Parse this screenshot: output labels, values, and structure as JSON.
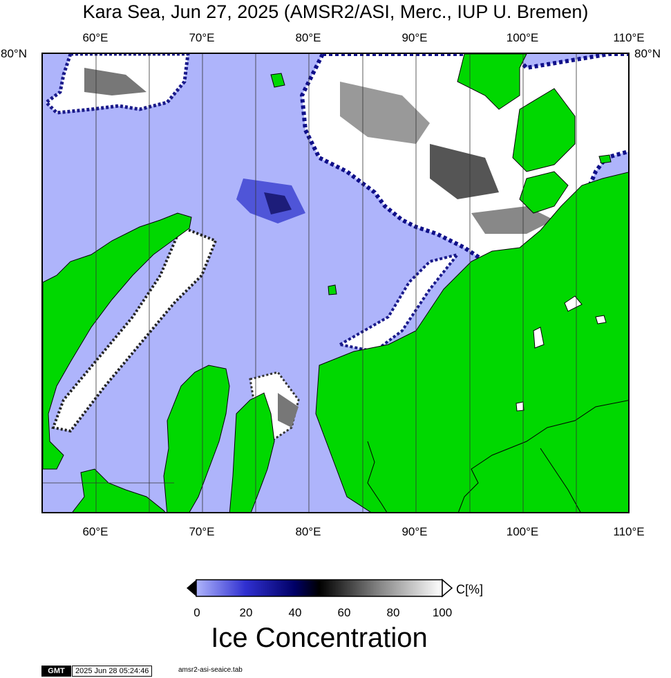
{
  "title": "Kara Sea, Jun 27, 2025 (AMSR2/ASI, Merc., IUP U. Bremen)",
  "map": {
    "lon_labels": [
      "60°E",
      "70°E",
      "80°E",
      "90°E",
      "100°E",
      "110°E"
    ],
    "lat_labels": [
      "80°N"
    ],
    "colors": {
      "open_water": "#aeb4fb",
      "land": "#00d800",
      "ice": "#ffffff",
      "grid": "#333333"
    }
  },
  "colorbar": {
    "tick_labels": [
      "0",
      "20",
      "40",
      "60",
      "80",
      "100"
    ],
    "unit": "C[%]",
    "title": "Ice Concentration",
    "colors": [
      "#aeb4fb",
      "#3030d0",
      "#000066",
      "#000000",
      "#888888",
      "#ffffff"
    ]
  },
  "footer": {
    "logo": "GMT",
    "timestamp": "2025 Jun 28 05:24:46",
    "file": "amsr2-asi-seaice.tab"
  }
}
